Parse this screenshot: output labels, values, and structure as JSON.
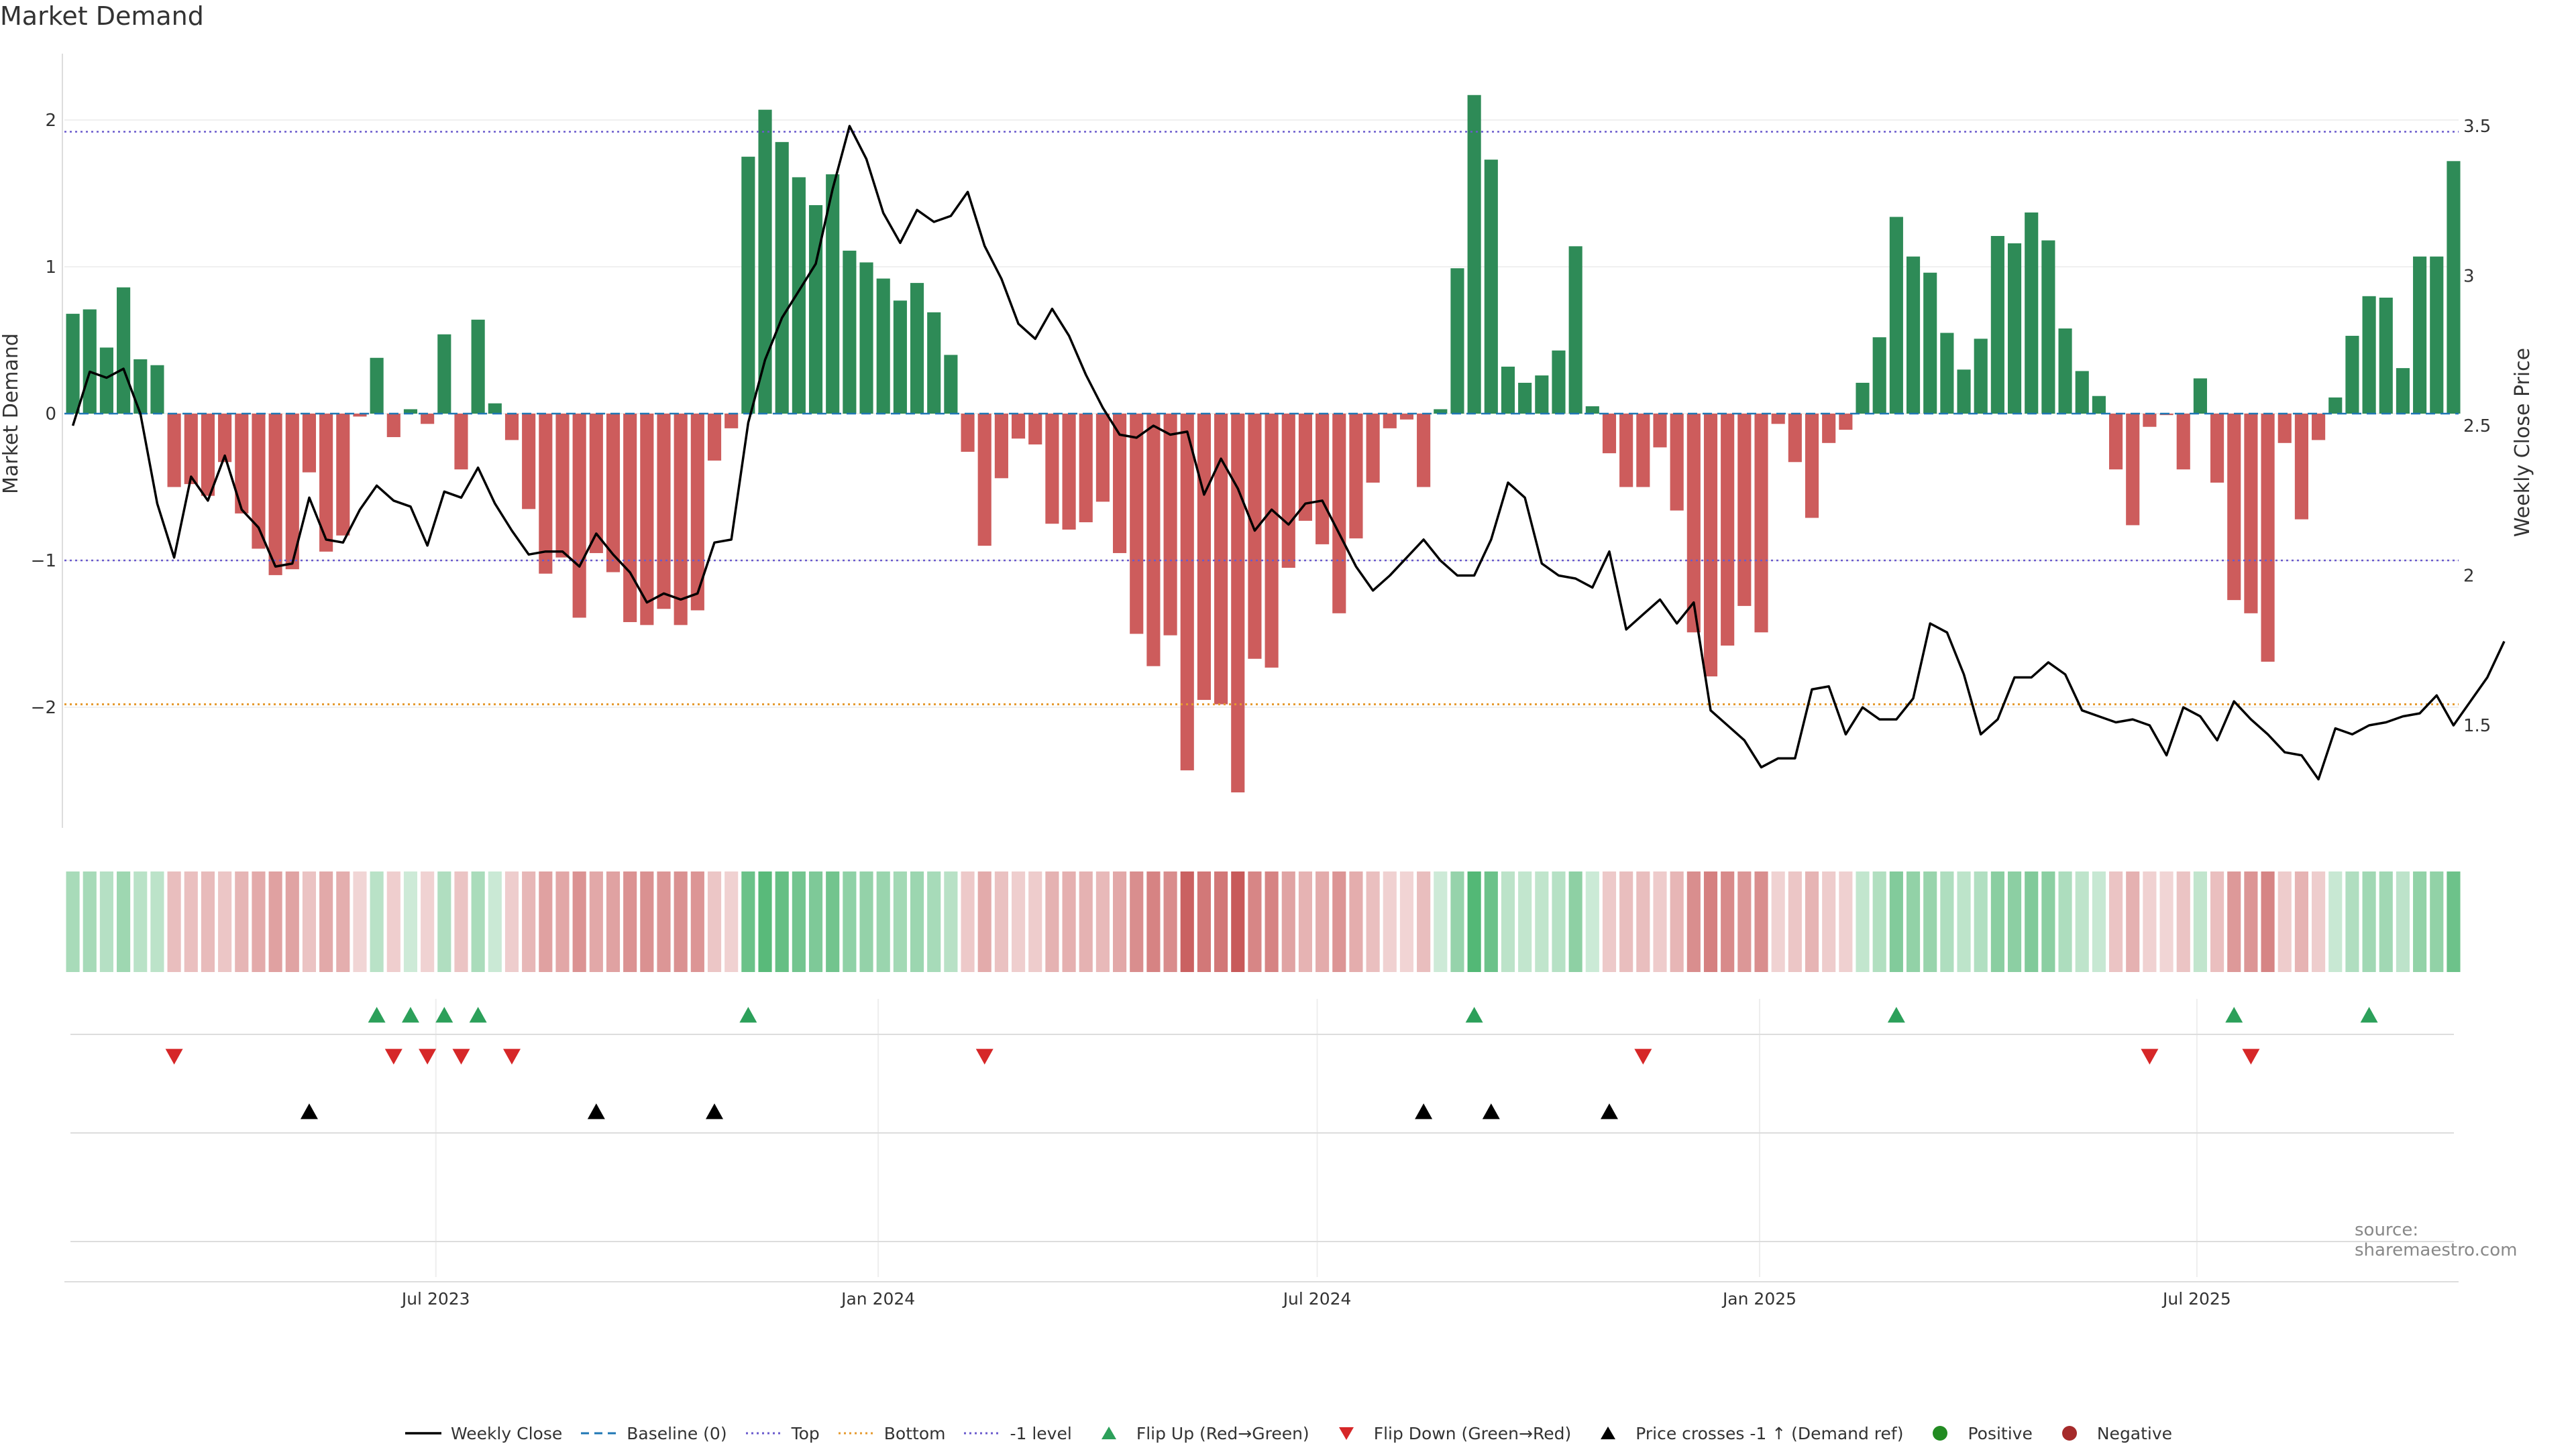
{
  "title": "Market Demand",
  "source": "source: sharemaestro.com",
  "colors": {
    "positive": "#2e8b57",
    "negative": "#cd5c5c",
    "price": "#000000",
    "top_line": "#6a5acd",
    "bottom_line": "#e69a2e",
    "minus1_line": "#6a5acd",
    "baseline": "#1f77b4",
    "flip_up": "#2ca05a",
    "flip_down": "#d62728",
    "cross": "#000000",
    "dot_positive": "#228b22",
    "dot_negative": "#a52a2a"
  },
  "legend": [
    {
      "label": "Weekly Close",
      "kind": "line-solid",
      "color": "#000000"
    },
    {
      "label": "Baseline (0)",
      "kind": "line-dash",
      "color": "#1f77b4"
    },
    {
      "label": "Top",
      "kind": "line-dot",
      "color": "#6a5acd"
    },
    {
      "label": "Bottom",
      "kind": "line-dot",
      "color": "#e69a2e"
    },
    {
      "label": "-1 level",
      "kind": "line-dot",
      "color": "#6a5acd"
    },
    {
      "label": "Flip Up (Red→Green)",
      "kind": "tri-up",
      "color": "#2ca05a"
    },
    {
      "label": "Flip Down (Green→Red)",
      "kind": "tri-down",
      "color": "#d62728"
    },
    {
      "label": "Price crosses -1 ↑ (Demand ref)",
      "kind": "tri-up",
      "color": "#000000"
    },
    {
      "label": "Positive",
      "kind": "dot",
      "color": "#228b22"
    },
    {
      "label": "Negative",
      "kind": "dot",
      "color": "#a52a2a"
    }
  ],
  "chart_data": {
    "type": "bar+line",
    "title": "Market Demand",
    "ylabel": "Market Demand",
    "y2label": "Weekly Close Price",
    "ylim": [
      -2.8,
      2.6
    ],
    "y2lim": [
      1.1,
      3.72
    ],
    "yticks": [
      2,
      1,
      0,
      -1,
      -2
    ],
    "ytick_labels": [
      "2",
      "1",
      "0",
      "−1",
      "−2"
    ],
    "y2ticks": [
      3.5,
      3,
      2.5,
      2,
      1.5
    ],
    "y2tick_labels": [
      "3.5",
      "3",
      "2.5",
      "2",
      "1.5"
    ],
    "reference_lines": {
      "top": 1.92,
      "bottom": -1.98,
      "minus1": -1.0,
      "baseline": 0
    },
    "x_tick_labels": [
      {
        "label": "Jul 2023",
        "week": 21.5
      },
      {
        "label": "Jan 2024",
        "week": 47.7
      },
      {
        "label": "Jul 2024",
        "week": 73.7
      },
      {
        "label": "Jan 2025",
        "week": 99.9
      },
      {
        "label": "Jul 2025",
        "week": 125.8
      }
    ],
    "demand": [
      0.68,
      0.71,
      0.45,
      0.86,
      0.37,
      0.33,
      -0.5,
      -0.48,
      -0.56,
      -0.33,
      -0.68,
      -0.92,
      -1.1,
      -1.06,
      -0.4,
      -0.94,
      -0.83,
      -0.02,
      0.38,
      -0.16,
      0.03,
      -0.07,
      0.54,
      -0.38,
      0.64,
      0.07,
      -0.18,
      -0.65,
      -1.09,
      -0.98,
      -1.39,
      -0.95,
      -1.08,
      -1.42,
      -1.44,
      -1.33,
      -1.44,
      -1.34,
      -0.32,
      -0.1,
      1.75,
      2.07,
      1.85,
      1.61,
      1.42,
      1.63,
      1.11,
      1.03,
      0.92,
      0.77,
      0.89,
      0.69,
      0.4,
      -0.26,
      -0.9,
      -0.44,
      -0.17,
      -0.21,
      -0.75,
      -0.79,
      -0.74,
      -0.6,
      -0.95,
      -1.5,
      -1.72,
      -1.51,
      -2.43,
      -1.95,
      -1.98,
      -2.58,
      -1.67,
      -1.73,
      -1.05,
      -0.73,
      -0.89,
      -1.36,
      -0.85,
      -0.47,
      -0.1,
      -0.04,
      -0.5,
      0.03,
      0.99,
      2.17,
      1.73,
      0.32,
      0.21,
      0.26,
      0.43,
      1.14,
      0.05,
      -0.27,
      -0.5,
      -0.5,
      -0.23,
      -0.66,
      -1.49,
      -1.79,
      -1.58,
      -1.31,
      -1.49,
      -0.07,
      -0.33,
      -0.71,
      -0.2,
      -0.11,
      0.21,
      0.52,
      1.34,
      1.07,
      0.96,
      0.55,
      0.3,
      0.51,
      1.21,
      1.16,
      1.37,
      1.18,
      0.58,
      0.29,
      0.12,
      -0.38,
      -0.76,
      -0.09,
      -0.01,
      -0.38,
      0.24,
      -0.47,
      -1.27,
      -1.36,
      -1.69,
      -0.2,
      -0.72,
      -0.18,
      0.11,
      0.53,
      0.8,
      0.79,
      0.31,
      1.07,
      1.07,
      1.72
    ],
    "price": [
      2.5,
      2.68,
      2.66,
      2.69,
      2.54,
      2.24,
      2.06,
      2.33,
      2.25,
      2.4,
      2.22,
      2.16,
      2.03,
      2.04,
      2.26,
      2.12,
      2.11,
      2.22,
      2.3,
      2.25,
      2.23,
      2.1,
      2.28,
      2.26,
      2.36,
      2.24,
      2.15,
      2.07,
      2.08,
      2.08,
      2.03,
      2.14,
      2.07,
      2.01,
      1.91,
      1.94,
      1.92,
      1.94,
      2.11,
      2.12,
      2.51,
      2.72,
      2.86,
      2.95,
      3.04,
      3.29,
      3.5,
      3.39,
      3.21,
      3.11,
      3.22,
      3.18,
      3.2,
      3.28,
      3.1,
      2.99,
      2.84,
      2.79,
      2.89,
      2.8,
      2.67,
      2.56,
      2.47,
      2.46,
      2.5,
      2.47,
      2.48,
      2.27,
      2.39,
      2.29,
      2.15,
      2.22,
      2.17,
      2.24,
      2.25,
      2.14,
      2.03,
      1.95,
      2.0,
      2.06,
      2.12,
      2.05,
      2.0,
      2.0,
      2.12,
      2.31,
      2.26,
      2.04,
      2.0,
      1.99,
      1.96,
      2.08,
      1.82,
      1.87,
      1.92,
      1.84,
      1.91,
      1.55,
      1.5,
      1.45,
      1.36,
      1.39,
      1.39,
      1.62,
      1.63,
      1.47,
      1.56,
      1.52,
      1.52,
      1.59,
      1.84,
      1.81,
      1.67,
      1.47,
      1.52,
      1.66,
      1.66,
      1.71,
      1.67,
      1.55,
      1.53,
      1.51,
      1.52,
      1.5,
      1.4,
      1.56,
      1.53,
      1.45,
      1.58,
      1.52,
      1.47,
      1.41,
      1.4,
      1.32,
      1.49,
      1.47,
      1.5,
      1.51,
      1.53,
      1.54,
      1.6,
      1.5,
      1.58,
      1.66,
      1.78
    ],
    "flip_up_weeks": [
      18,
      20,
      22,
      24,
      40,
      83,
      108,
      128,
      136
    ],
    "flip_down_weeks": [
      6,
      19,
      21,
      23,
      26,
      54,
      93,
      123,
      129
    ],
    "price_cross_weeks": [
      14,
      31,
      38,
      80,
      84,
      91
    ]
  }
}
